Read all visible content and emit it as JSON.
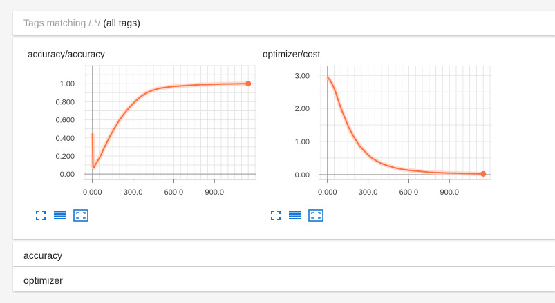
{
  "tag_filter": {
    "label": "Tags matching",
    "pattern": "/.*/",
    "note": "(all tags)"
  },
  "colors": {
    "series": "#ff7043",
    "series_faint": "#ffccbc",
    "control_icon": "#1976d2"
  },
  "controls": {
    "expand_icon": "fullscreen-icon",
    "data_icon": "list-lines-icon",
    "fit_icon": "fit-domain-icon"
  },
  "sections": {
    "accuracy": "accuracy",
    "optimizer": "optimizer"
  },
  "chart_data": [
    {
      "type": "line",
      "title": "accuracy/accuracy",
      "xlim": [
        -60,
        1210
      ],
      "ylim": [
        -0.06,
        1.2
      ],
      "xticks": [
        0,
        300,
        600,
        900
      ],
      "xtick_labels": [
        "0.000",
        "300.0",
        "600.0",
        "900.0"
      ],
      "yticks": [
        0,
        0.2,
        0.4,
        0.6,
        0.8,
        1.0
      ],
      "ytick_labels": [
        "0.00",
        "0.200",
        "0.400",
        "0.600",
        "0.800",
        "1.00"
      ],
      "grid": true,
      "series": [
        {
          "x": [
            0,
            2,
            5,
            10,
            20,
            40,
            60,
            80,
            100,
            130,
            160,
            200,
            240,
            280,
            320,
            360,
            400,
            450,
            500,
            550,
            600,
            650,
            700,
            750,
            800,
            850,
            900,
            950,
            1000,
            1050,
            1100,
            1150
          ],
          "y": [
            0.45,
            0.2,
            0.08,
            0.07,
            0.1,
            0.15,
            0.2,
            0.27,
            0.33,
            0.42,
            0.5,
            0.6,
            0.68,
            0.75,
            0.81,
            0.86,
            0.9,
            0.93,
            0.95,
            0.96,
            0.97,
            0.975,
            0.98,
            0.985,
            0.99,
            0.99,
            0.993,
            0.995,
            0.997,
            0.998,
            0.999,
            1.0
          ]
        }
      ]
    },
    {
      "type": "line",
      "title": "optimizer/cost",
      "xlim": [
        -60,
        1210
      ],
      "ylim": [
        -0.15,
        3.3
      ],
      "xticks": [
        0,
        300,
        600,
        900
      ],
      "xtick_labels": [
        "0.000",
        "300.0",
        "600.0",
        "900.0"
      ],
      "yticks": [
        0,
        1,
        2,
        3
      ],
      "ytick_labels": [
        "0.00",
        "1.00",
        "2.00",
        "3.00"
      ],
      "grid": true,
      "series": [
        {
          "x": [
            0,
            10,
            20,
            40,
            60,
            80,
            100,
            130,
            160,
            200,
            240,
            280,
            320,
            360,
            400,
            450,
            500,
            550,
            600,
            650,
            700,
            750,
            800,
            850,
            900,
            950,
            1000,
            1050,
            1100,
            1150
          ],
          "y": [
            2.95,
            2.9,
            2.85,
            2.7,
            2.5,
            2.25,
            2.0,
            1.7,
            1.4,
            1.1,
            0.85,
            0.68,
            0.52,
            0.42,
            0.33,
            0.26,
            0.2,
            0.16,
            0.13,
            0.11,
            0.09,
            0.07,
            0.06,
            0.05,
            0.045,
            0.04,
            0.035,
            0.03,
            0.025,
            0.02
          ]
        }
      ]
    }
  ]
}
